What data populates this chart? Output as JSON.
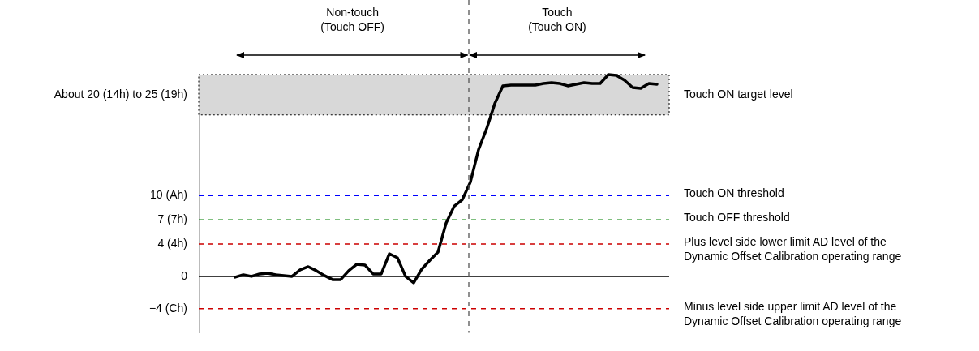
{
  "chart_data": {
    "type": "line",
    "categories": [
      null,
      null,
      null,
      null,
      null,
      null,
      null,
      null,
      null,
      null,
      null,
      null,
      null,
      null,
      null,
      null,
      null,
      null,
      null,
      null,
      null,
      null,
      null,
      null,
      null,
      null,
      null,
      null,
      null,
      null,
      null,
      null,
      null,
      null,
      null,
      null,
      null,
      null,
      null,
      null,
      null,
      null,
      null,
      null,
      null,
      null,
      null,
      null,
      null,
      null,
      null,
      null,
      null,
      null,
      null,
      null,
      null,
      null
    ],
    "series": [
      {
        "color": "#000000",
        "values": [
          null,
          null,
          null,
          null,
          -0.1,
          0.2,
          0.0,
          0.3,
          0.4,
          0.2,
          0.1,
          0.0,
          0.8,
          1.2,
          0.7,
          0.1,
          -0.4,
          -0.4,
          0.7,
          1.5,
          1.4,
          0.3,
          0.3,
          2.8,
          2.3,
          0.0,
          -0.8,
          0.9,
          2.0,
          3.0,
          6.6,
          8.7,
          9.5,
          11.7,
          15.7,
          18.3,
          21.4,
          23.6,
          23.7,
          23.7,
          23.7,
          23.7,
          23.9,
          24.0,
          23.9,
          23.6,
          23.8,
          24.0,
          23.9,
          23.9,
          25.0,
          24.9,
          24.3,
          23.4,
          23.3,
          23.9,
          23.8,
          null
        ]
      }
    ],
    "ylim": [
      -7,
      25
    ],
    "yticks": [
      {
        "value": -4,
        "label": "−4 (Ch)"
      },
      {
        "value": 0,
        "label": "0"
      },
      {
        "value": 4,
        "label": "4 (4h)"
      },
      {
        "value": 7,
        "label": "7 (7h)"
      },
      {
        "value": 10,
        "label": "10 (Ah)"
      },
      {
        "value": 22.5,
        "label": "About 20 (14h) to 25 (19h)"
      }
    ],
    "tick_labels": "y",
    "grid": false,
    "legend": false,
    "marker": "none",
    "line_style": "solid",
    "ref_lines": [
      {
        "axis": "y",
        "value": 10,
        "label": "Touch ON threshold",
        "color": "#0000ff",
        "line_style": "dashed"
      },
      {
        "axis": "y",
        "value": 7,
        "label": "Touch OFF threshold",
        "color": "#008000",
        "line_style": "dashed"
      },
      {
        "axis": "y",
        "value": 4,
        "label": "Plus level side lower limit AD level of the\nDynamic Offset Calibration operating range",
        "color": "#cc0000",
        "line_style": "dashed"
      },
      {
        "axis": "y",
        "value": 0,
        "label": null,
        "color": "#000000",
        "line_style": "solid"
      },
      {
        "axis": "y",
        "value": -4,
        "label": "Minus level side upper limit AD level of the\nDynamic Offset Calibration operating range",
        "color": "#cc0000",
        "line_style": "dashed"
      }
    ],
    "bands": [
      {
        "axis": "y",
        "from": 20,
        "to": 25,
        "label": "Touch ON target level",
        "color": "#d8d8d8"
      }
    ],
    "annotations": [
      "Non-touch\n(Touch OFF)",
      "Touch\n(Touch ON)"
    ]
  }
}
